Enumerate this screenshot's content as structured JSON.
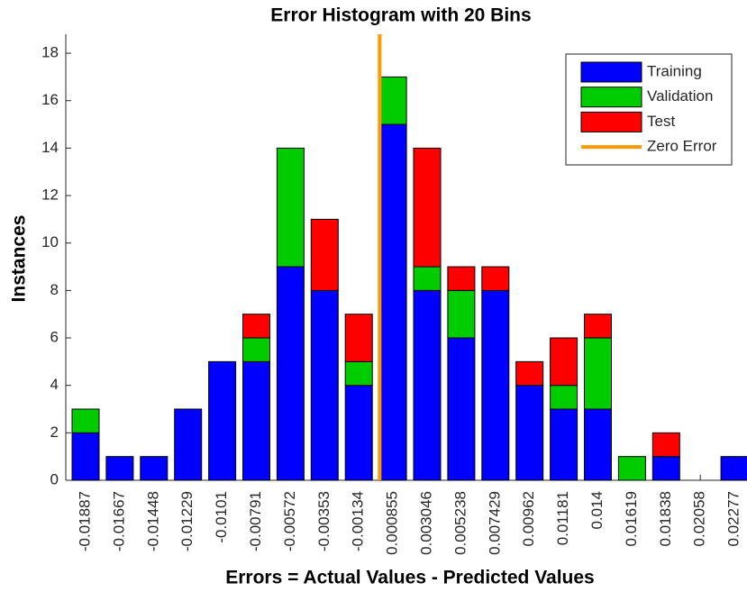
{
  "chart_data": {
    "type": "stacked_bar",
    "title": "Error Histogram with 20 Bins",
    "xlabel": "Errors = Actual Values - Predicted Values",
    "ylabel": "Instances",
    "categories": [
      "-0.01887",
      "-0.01667",
      "-0.01448",
      "-0.01229",
      "-0.0101",
      "-0.00791",
      "-0.00572",
      "-0.00353",
      "-0.00134",
      "0.000855",
      "0.003046",
      "0.005238",
      "0.007429",
      "0.00962",
      "0.01181",
      "0.014",
      "0.01619",
      "0.01838",
      "0.02058",
      "0.02277"
    ],
    "series": [
      {
        "name": "Training",
        "color": "#0000ff",
        "values": [
          2,
          1,
          1,
          3,
          5,
          5,
          9,
          8,
          4,
          15,
          8,
          6,
          8,
          4,
          3,
          3,
          0,
          1,
          0,
          1
        ]
      },
      {
        "name": "Validation",
        "color": "#00cc00",
        "values": [
          1,
          0,
          0,
          0,
          0,
          1,
          5,
          0,
          1,
          2,
          1,
          2,
          0,
          0,
          1,
          3,
          1,
          0,
          0,
          0
        ]
      },
      {
        "name": "Test",
        "color": "#ff0000",
        "values": [
          0,
          0,
          0,
          0,
          0,
          1,
          0,
          3,
          2,
          0,
          5,
          1,
          1,
          1,
          2,
          1,
          0,
          1,
          0,
          0
        ]
      }
    ],
    "zero_line": {
      "name": "Zero Error",
      "color": "#ff9900",
      "value": 0
    },
    "ylim": [
      0,
      18.8
    ],
    "yticks": [
      0,
      2,
      4,
      6,
      8,
      10,
      12,
      14,
      16,
      18
    ],
    "legend": "upper right"
  }
}
